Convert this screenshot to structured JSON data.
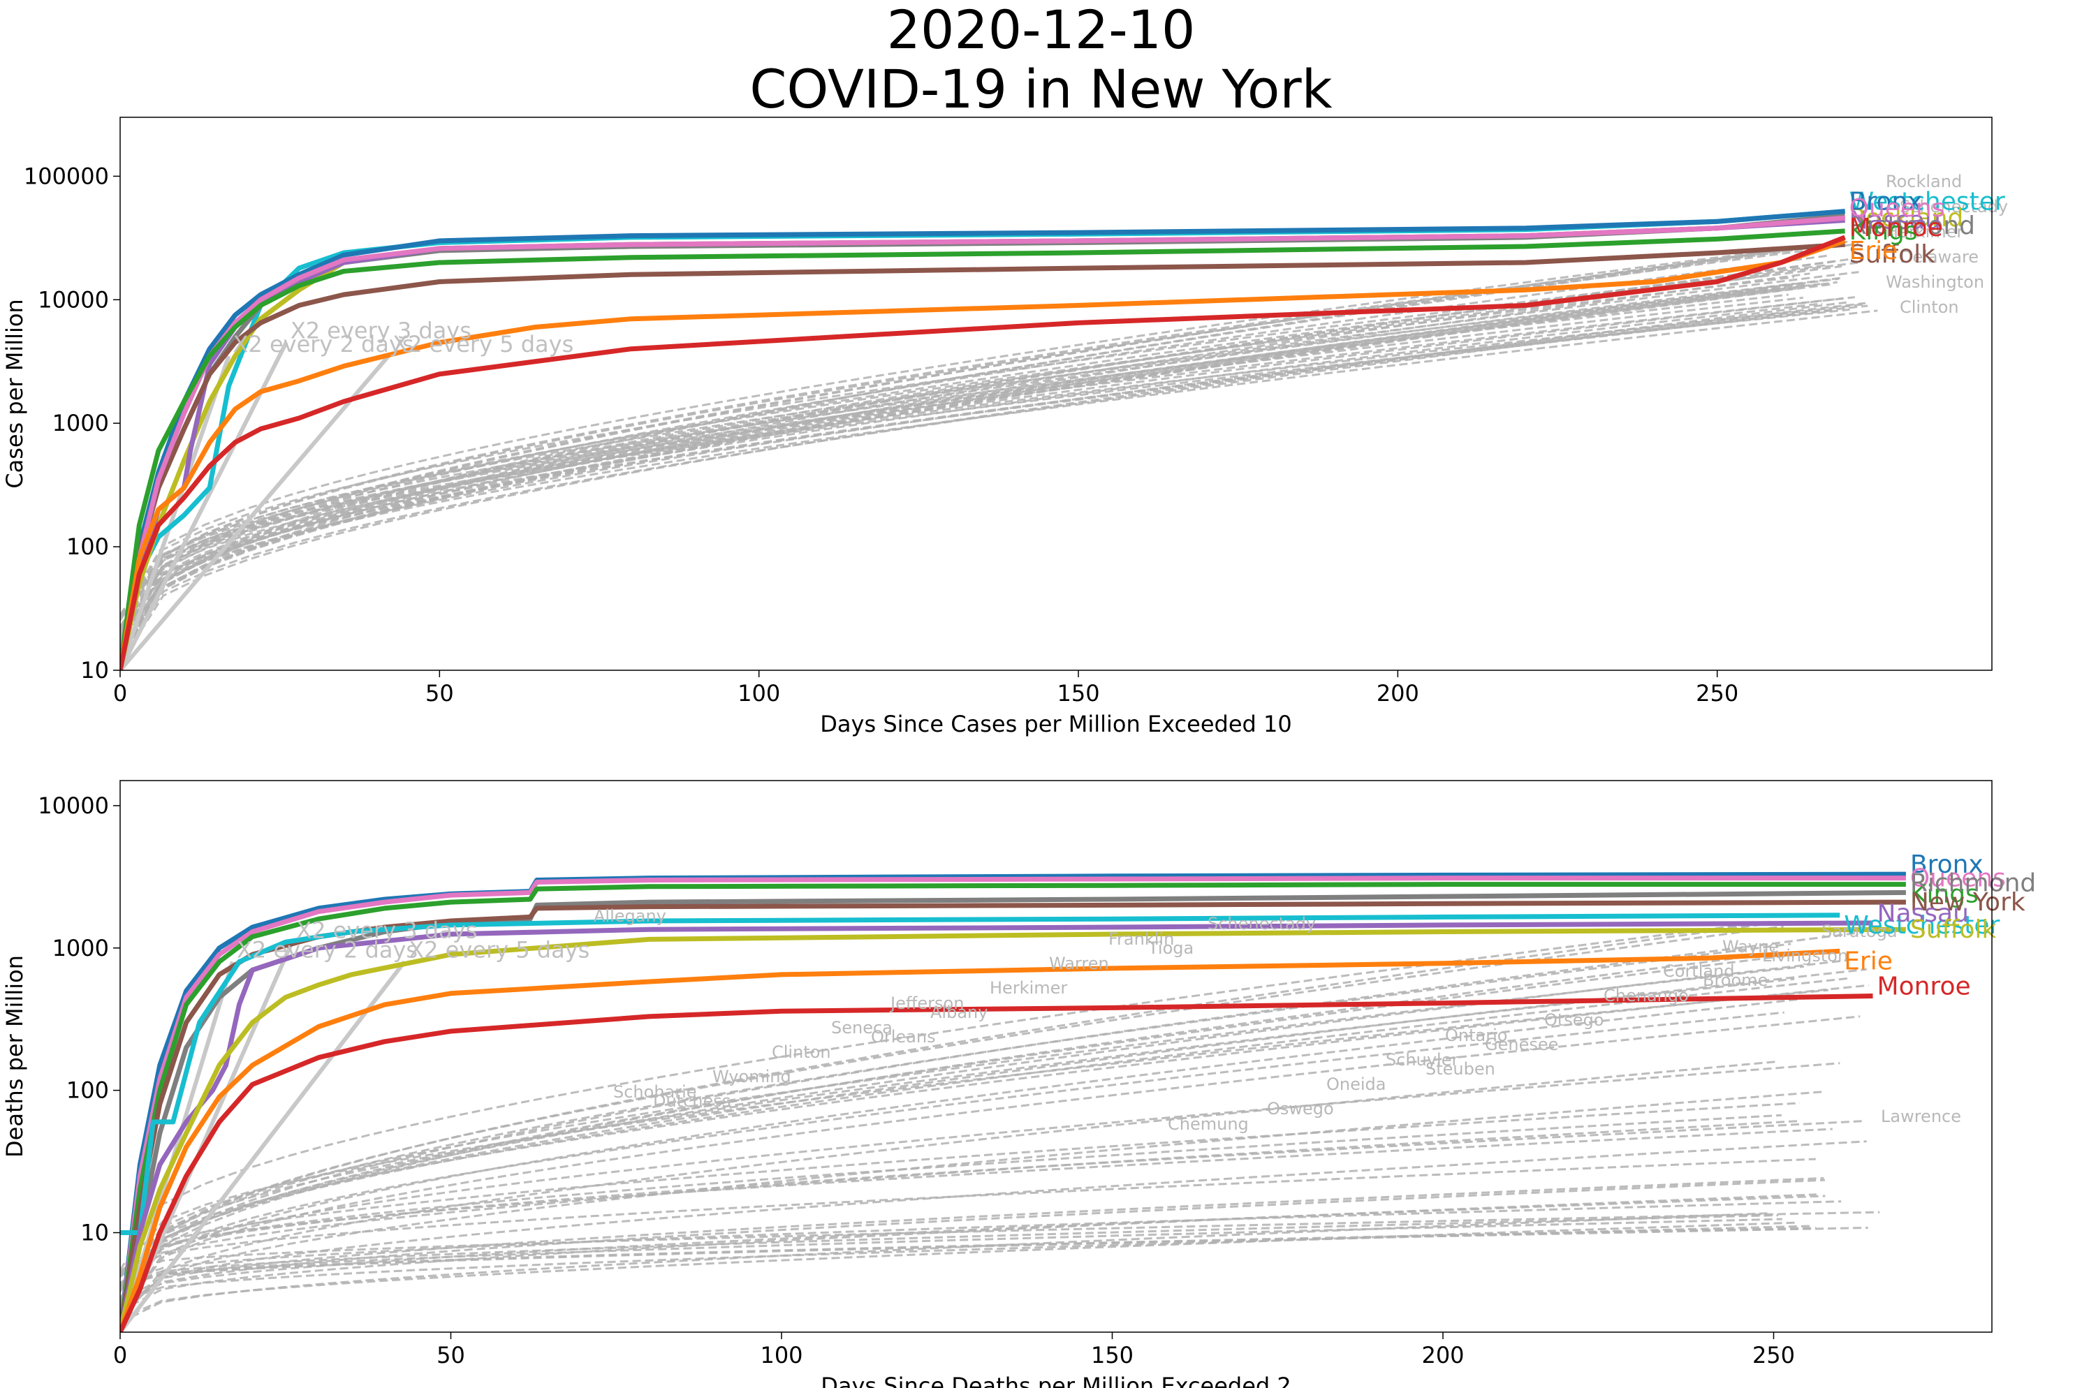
{
  "figure": {
    "title_date": "2020-12-10",
    "title_main": "COVID-19 in New York"
  },
  "chart_data": [
    {
      "type": "line",
      "y_scale": "log",
      "xlabel": "Days Since Cases per Million Exceeded 10",
      "ylabel": "Cases per Million",
      "xlim": [
        0,
        293
      ],
      "ylim": [
        10,
        300000
      ],
      "x_ticks": [
        0,
        50,
        100,
        150,
        200,
        250
      ],
      "y_ticks": [
        10,
        100,
        1000,
        10000,
        100000
      ],
      "y_tick_labels": [
        "10",
        "100",
        "1000",
        "10000",
        "100000"
      ],
      "grid": false,
      "legend": "none (series labelled at line ends)",
      "reference_lines": [
        {
          "label": "X2 every 2 days",
          "x": [
            0,
            17
          ],
          "y": [
            10,
            3500
          ]
        },
        {
          "label": "X2 every 3 days",
          "x": [
            0,
            26
          ],
          "y": [
            10,
            4500
          ]
        },
        {
          "label": "X2 every 5 days",
          "x": [
            0,
            42
          ],
          "y": [
            10,
            3500
          ]
        }
      ],
      "reference_line_color": "#c8c8c8",
      "series": [
        {
          "name": "Westchester",
          "color": "#17becf",
          "x": [
            0,
            3,
            6,
            10,
            14,
            17,
            22,
            28,
            35,
            50,
            80,
            150,
            220,
            250,
            270
          ],
          "y": [
            10,
            60,
            120,
            180,
            300,
            2000,
            9000,
            18000,
            24000,
            29000,
            32000,
            34000,
            37000,
            43000,
            52000
          ]
        },
        {
          "name": "Rockland",
          "color": "#bcbd22",
          "x": [
            0,
            3,
            6,
            10,
            14,
            18,
            22,
            28,
            35,
            50,
            80,
            150,
            220,
            250,
            270
          ],
          "y": [
            10,
            50,
            150,
            500,
            1500,
            3500,
            7000,
            12000,
            20000,
            26000,
            28000,
            30000,
            33000,
            38000,
            46000
          ]
        },
        {
          "name": "Richmond",
          "color": "#7f7f7f",
          "x": [
            0,
            3,
            6,
            10,
            14,
            18,
            22,
            28,
            35,
            50,
            80,
            150,
            220,
            250,
            270
          ],
          "y": [
            10,
            80,
            300,
            900,
            2500,
            5000,
            9000,
            14000,
            20000,
            25000,
            27000,
            29000,
            32000,
            38000,
            48000
          ]
        },
        {
          "name": "Bronx",
          "color": "#1f77b4",
          "x": [
            0,
            3,
            6,
            10,
            14,
            18,
            22,
            28,
            35,
            50,
            80,
            150,
            220,
            250,
            270
          ],
          "y": [
            10,
            100,
            400,
            1500,
            4000,
            7500,
            11000,
            16000,
            23000,
            30000,
            33000,
            35000,
            38000,
            43000,
            52000
          ]
        },
        {
          "name": "Nassau",
          "color": "#9467bd",
          "x": [
            0,
            3,
            6,
            10,
            11,
            14,
            18,
            22,
            28,
            35,
            50,
            80,
            150,
            220,
            250,
            270
          ],
          "y": [
            10,
            60,
            200,
            300,
            600,
            3000,
            6000,
            9000,
            14000,
            20000,
            26000,
            28000,
            30000,
            33000,
            38000,
            44000
          ]
        },
        {
          "name": "Suffolk",
          "color": "#8c564b",
          "x": [
            0,
            3,
            6,
            10,
            14,
            18,
            22,
            28,
            35,
            50,
            80,
            150,
            220,
            250,
            270
          ],
          "y": [
            10,
            90,
            300,
            900,
            2500,
            4500,
            6500,
            9000,
            11000,
            14000,
            16000,
            18000,
            20000,
            24000,
            28000
          ]
        },
        {
          "name": "Queens",
          "color": "#e377c2",
          "x": [
            0,
            3,
            6,
            10,
            14,
            18,
            22,
            28,
            35,
            50,
            80,
            150,
            220,
            250,
            270
          ],
          "y": [
            10,
            80,
            350,
            1200,
            3500,
            6500,
            10000,
            15000,
            21000,
            26000,
            28000,
            30000,
            33000,
            38000,
            46000
          ]
        },
        {
          "name": "Kings",
          "color": "#2ca02c",
          "x": [
            0,
            3,
            6,
            10,
            14,
            18,
            22,
            28,
            35,
            50,
            80,
            150,
            220,
            250,
            270
          ],
          "y": [
            10,
            150,
            600,
            1500,
            3500,
            6000,
            9000,
            13000,
            17000,
            20000,
            22000,
            24000,
            27000,
            31000,
            36000
          ]
        },
        {
          "name": "Erie",
          "color": "#ff7f0e",
          "x": [
            0,
            3,
            6,
            10,
            14,
            18,
            22,
            28,
            35,
            50,
            65,
            80,
            150,
            220,
            240,
            260,
            270
          ],
          "y": [
            10,
            80,
            200,
            300,
            700,
            1300,
            1800,
            2200,
            2900,
            4500,
            6000,
            7000,
            9000,
            12000,
            14000,
            20000,
            30000
          ]
        },
        {
          "name": "Monroe",
          "color": "#d62728",
          "x": [
            0,
            3,
            6,
            10,
            14,
            18,
            22,
            28,
            35,
            50,
            80,
            150,
            220,
            250,
            260,
            270
          ],
          "y": [
            10,
            60,
            150,
            250,
            450,
            700,
            900,
            1100,
            1500,
            2500,
            4000,
            6500,
            9000,
            14000,
            20000,
            32000
          ]
        }
      ],
      "background_counties": {
        "color": "#b0b0b0",
        "style": "dashed",
        "labels": [
          "Rockland",
          "Schenectady",
          "Herkimer",
          "Delaware",
          "Washington",
          "Clinton"
        ]
      }
    },
    {
      "type": "line",
      "y_scale": "log",
      "xlabel": "Days Since Deaths per Million Exceeded 2",
      "ylabel": "Deaths per Million",
      "xlim": [
        0,
        283
      ],
      "ylim": [
        2,
        15000
      ],
      "x_ticks": [
        0,
        50,
        100,
        150,
        200,
        250
      ],
      "y_ticks": [
        10,
        100,
        1000,
        10000
      ],
      "y_tick_labels": [
        "10",
        "100",
        "1000",
        "10000"
      ],
      "grid": false,
      "legend": "none (series labelled at line ends)",
      "reference_lines": [
        {
          "label": "X2 every 2 days",
          "x": [
            0,
            17
          ],
          "y": [
            2,
            800
          ]
        },
        {
          "label": "X2 every 3 days",
          "x": [
            0,
            26
          ],
          "y": [
            2,
            1100
          ]
        },
        {
          "label": "X2 every 5 days",
          "x": [
            0,
            43
          ],
          "y": [
            2,
            800
          ]
        }
      ],
      "reference_line_color": "#c8c8c8",
      "series": [
        {
          "name": "Bronx",
          "color": "#1f77b4",
          "x": [
            0,
            3,
            6,
            10,
            15,
            20,
            30,
            40,
            50,
            62,
            63,
            80,
            150,
            200,
            270
          ],
          "y": [
            2,
            30,
            150,
            500,
            1000,
            1400,
            1900,
            2200,
            2400,
            2500,
            3000,
            3100,
            3200,
            3250,
            3300
          ]
        },
        {
          "name": "Queens",
          "color": "#e377c2",
          "x": [
            0,
            3,
            6,
            10,
            15,
            20,
            30,
            40,
            50,
            62,
            63,
            80,
            150,
            200,
            270
          ],
          "y": [
            2,
            25,
            120,
            450,
            900,
            1300,
            1800,
            2100,
            2350,
            2450,
            2900,
            3000,
            3050,
            3100,
            3100
          ]
        },
        {
          "name": "Kings",
          "color": "#2ca02c",
          "x": [
            0,
            3,
            6,
            10,
            15,
            20,
            30,
            40,
            50,
            62,
            63,
            80,
            150,
            200,
            270
          ],
          "y": [
            2,
            20,
            100,
            400,
            800,
            1200,
            1600,
            1900,
            2100,
            2200,
            2600,
            2700,
            2750,
            2800,
            2800
          ]
        },
        {
          "name": "Richmond",
          "color": "#7f7f7f",
          "x": [
            0,
            3,
            6,
            10,
            15,
            20,
            30,
            40,
            50,
            62,
            63,
            80,
            150,
            200,
            270
          ],
          "y": [
            2,
            10,
            50,
            200,
            450,
            700,
            1000,
            1300,
            1500,
            1600,
            2000,
            2100,
            2200,
            2300,
            2450
          ]
        },
        {
          "name": "New York",
          "color": "#8c564b",
          "x": [
            0,
            3,
            6,
            10,
            15,
            20,
            30,
            40,
            50,
            62,
            63,
            80,
            150,
            200,
            270
          ],
          "y": [
            2,
            15,
            80,
            300,
            650,
            900,
            1200,
            1400,
            1550,
            1650,
            1900,
            1950,
            2000,
            2050,
            2100
          ]
        },
        {
          "name": "Westchester",
          "color": "#17becf",
          "x": [
            0,
            3,
            5,
            8,
            12,
            18,
            25,
            35,
            50,
            80,
            150,
            200,
            260
          ],
          "y": [
            10,
            10,
            60,
            60,
            300,
            800,
            1100,
            1300,
            1450,
            1550,
            1600,
            1650,
            1700
          ]
        },
        {
          "name": "Nassau",
          "color": "#9467bd",
          "x": [
            0,
            3,
            6,
            10,
            14,
            16,
            18,
            20,
            30,
            50,
            80,
            150,
            200,
            265
          ],
          "y": [
            2,
            10,
            30,
            60,
            100,
            150,
            400,
            700,
            1000,
            1250,
            1350,
            1400,
            1450,
            1500
          ]
        },
        {
          "name": "Suffolk",
          "color": "#bcbd22",
          "x": [
            0,
            3,
            6,
            10,
            15,
            20,
            25,
            30,
            35,
            50,
            80,
            150,
            200,
            270
          ],
          "y": [
            2,
            8,
            20,
            50,
            150,
            300,
            450,
            550,
            650,
            900,
            1150,
            1250,
            1300,
            1350
          ]
        },
        {
          "name": "Erie",
          "color": "#ff7f0e",
          "x": [
            0,
            3,
            6,
            10,
            15,
            20,
            30,
            40,
            50,
            80,
            100,
            150,
            200,
            240,
            260
          ],
          "y": [
            2,
            5,
            15,
            40,
            90,
            150,
            280,
            400,
            480,
            580,
            650,
            720,
            780,
            850,
            950
          ]
        },
        {
          "name": "Monroe",
          "color": "#d62728",
          "x": [
            0,
            3,
            6,
            10,
            15,
            20,
            30,
            40,
            50,
            80,
            100,
            150,
            200,
            240,
            265
          ],
          "y": [
            2,
            4,
            10,
            25,
            60,
            110,
            170,
            220,
            260,
            330,
            360,
            380,
            410,
            440,
            460
          ]
        }
      ],
      "background_counties": {
        "color": "#b0b0b0",
        "style": "dashed",
        "labels": [
          "Allegany",
          "Orleans",
          "Tioga",
          "Steuben",
          "Broome",
          "Dutchess",
          "Albany",
          "Schenectady",
          "Genesee",
          "Livingston",
          "Wyoming",
          "Herkimer",
          "Oswego",
          "Otsego",
          "Saratoga",
          "Clinton",
          "Warren",
          "Oneida",
          "Chenango",
          "Lawrence",
          "Seneca",
          "Franklin",
          "Schuyler",
          "Cortland",
          "Schoharie",
          "Jefferson",
          "Chemung",
          "Ontario",
          "Wayne"
        ]
      }
    }
  ]
}
